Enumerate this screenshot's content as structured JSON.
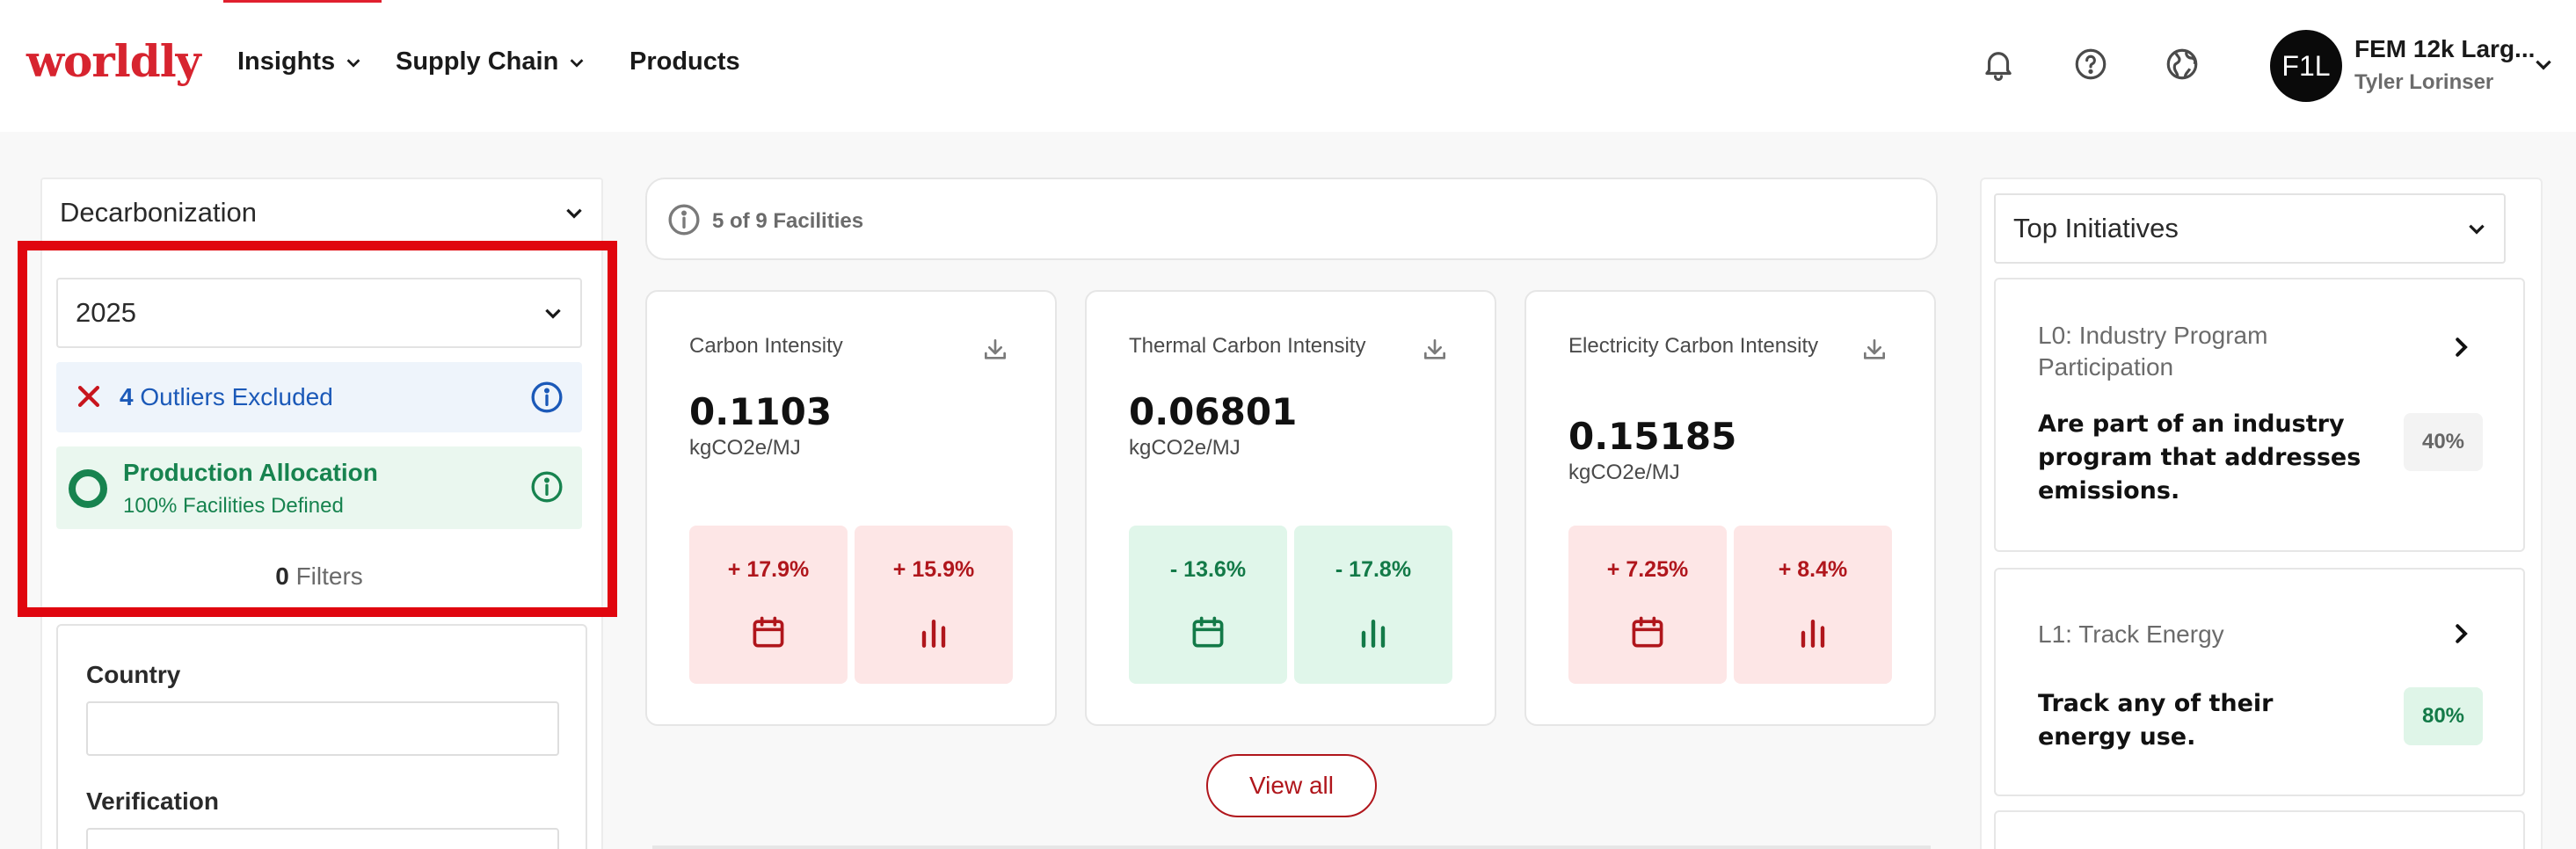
{
  "header": {
    "logo": "worldly",
    "nav": [
      {
        "label": "Insights",
        "has_dropdown": true
      },
      {
        "label": "Supply Chain",
        "has_dropdown": true
      },
      {
        "label": "Products",
        "has_dropdown": false
      }
    ],
    "icons": [
      "bell-icon",
      "help-icon",
      "globe-icon"
    ],
    "avatar_initials": "F1L",
    "org_name": "FEM 12k Larg...",
    "user_name": "Tyler Lorinser"
  },
  "left_panel": {
    "view_select": "Decarbonization",
    "year_select": "2025",
    "outliers": {
      "count": "4",
      "label": "Outliers Excluded"
    },
    "allocation": {
      "title": "Production Allocation",
      "subtitle": "100% Facilities Defined"
    },
    "filters": {
      "count": "0",
      "label": "Filters"
    },
    "fields": [
      {
        "label": "Country",
        "value": ""
      },
      {
        "label": "Verification",
        "value": ""
      }
    ]
  },
  "facilities": {
    "text": "5 of 9 Facilities"
  },
  "metrics": [
    {
      "title": "Carbon Intensity",
      "value": "0.1103",
      "unit": "kgCO2e/MJ",
      "changes": [
        {
          "pct": "+ 17.9%",
          "kind": "red",
          "icon": "calendar-icon"
        },
        {
          "pct": "+ 15.9%",
          "kind": "red",
          "icon": "bar-chart-icon"
        }
      ]
    },
    {
      "title": "Thermal Carbon Intensity",
      "value": "0.06801",
      "unit": "kgCO2e/MJ",
      "changes": [
        {
          "pct": "- 13.6%",
          "kind": "green",
          "icon": "calendar-icon"
        },
        {
          "pct": "- 17.8%",
          "kind": "green",
          "icon": "bar-chart-icon"
        }
      ]
    },
    {
      "title": "Electricity Carbon Intensity",
      "value": "0.15185",
      "unit": "kgCO2e/MJ",
      "changes": [
        {
          "pct": "+ 7.25%",
          "kind": "red",
          "icon": "calendar-icon"
        },
        {
          "pct": "+ 8.4%",
          "kind": "red",
          "icon": "bar-chart-icon"
        }
      ]
    }
  ],
  "view_all": "View all",
  "right_panel": {
    "select": "Top Initiatives",
    "initiatives": [
      {
        "title": "L0: Industry Program Participation",
        "body": "Are part of an industry program that addresses emissions.",
        "percent": "40%"
      },
      {
        "title": "L1: Track Energy",
        "body": "Track any of their energy use.",
        "percent": "80%"
      }
    ]
  },
  "colors": {
    "brand": "#d7242f",
    "highlight": "#e0060f",
    "negative": "#b0161c",
    "positive": "#137a48",
    "link": "#1b59b8"
  }
}
